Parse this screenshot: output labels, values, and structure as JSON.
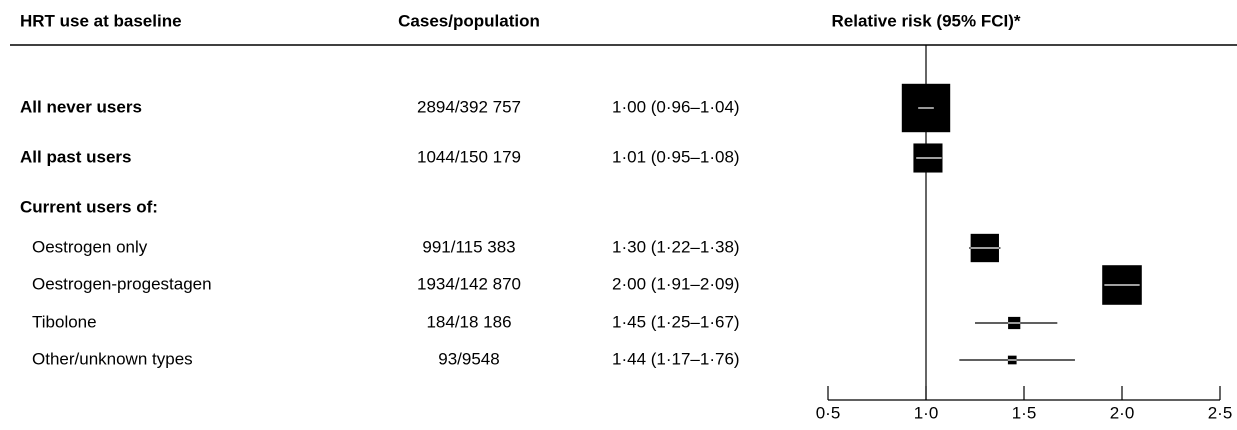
{
  "chart_data": {
    "type": "forest",
    "headers": [
      "HRT use at baseline",
      "Cases/population",
      "Relative risk (95% FCI)*"
    ],
    "reference": 1,
    "xlim": [
      0.5,
      2.5
    ],
    "xticks": [
      {
        "value": 0.5,
        "label": "0·5"
      },
      {
        "value": 1.0,
        "label": "1·0"
      },
      {
        "value": 1.5,
        "label": "1·5"
      },
      {
        "value": 2.0,
        "label": "2·0"
      },
      {
        "value": 2.5,
        "label": "2·5"
      }
    ],
    "rows": [
      {
        "label": "All never users",
        "bold": true,
        "cases_population": "2894/392 757",
        "cases": 2894,
        "rr_label": "1·00 (0·96–1·04)",
        "rr": 1.0,
        "ci": [
          0.96,
          1.04
        ]
      },
      {
        "label": "All past users",
        "bold": true,
        "cases_population": "1044/150 179",
        "cases": 1044,
        "rr_label": "1·01 (0·95–1·08)",
        "rr": 1.01,
        "ci": [
          0.95,
          1.08
        ]
      },
      {
        "label": "Current users of:",
        "bold": true
      },
      {
        "label": "Oestrogen only",
        "indent": true,
        "cases_population": "991/115 383",
        "cases": 991,
        "rr_label": "1·30 (1·22–1·38)",
        "rr": 1.3,
        "ci": [
          1.22,
          1.38
        ]
      },
      {
        "label": "Oestrogen-progestagen",
        "indent": true,
        "cases_population": "1934/142 870",
        "cases": 1934,
        "rr_label": "2·00 (1·91–2·09)",
        "rr": 2.0,
        "ci": [
          1.91,
          2.09
        ]
      },
      {
        "label": "Tibolone",
        "indent": true,
        "cases_population": "184/18 186",
        "cases": 184,
        "rr_label": "1·45 (1·25–1·67)",
        "rr": 1.45,
        "ci": [
          1.25,
          1.67
        ]
      },
      {
        "label": "Other/unknown types",
        "indent": true,
        "cases_population": "93/9548",
        "cases": 93,
        "rr_label": "1·44 (1·17–1·76)",
        "rr": 1.44,
        "ci": [
          1.17,
          1.76
        ]
      }
    ]
  }
}
